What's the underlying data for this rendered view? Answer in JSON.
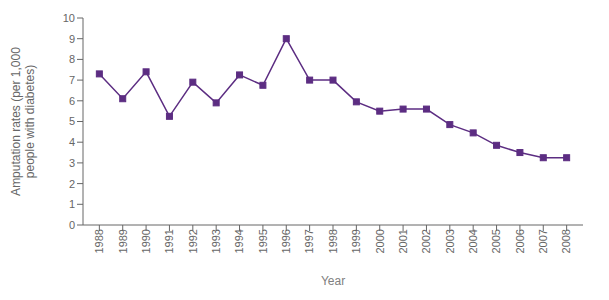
{
  "chart_data": {
    "type": "line",
    "xlabel": "Year",
    "ylabel": "Amputation rates (per 1,000\npeople with diabetes)",
    "x": [
      1988,
      1989,
      1990,
      1991,
      1992,
      1993,
      1994,
      1995,
      1996,
      1997,
      1998,
      1999,
      2000,
      2001,
      2002,
      2003,
      2004,
      2005,
      2006,
      2007,
      2008
    ],
    "values": [
      7.3,
      6.1,
      7.4,
      5.25,
      6.9,
      5.9,
      7.25,
      6.75,
      9.0,
      7.0,
      7.0,
      5.95,
      5.5,
      5.6,
      5.6,
      4.85,
      4.45,
      3.85,
      3.5,
      3.25,
      3.25
    ],
    "color": "#5c2d82",
    "marker": "square",
    "xlim": [
      1987.3,
      2008.7
    ],
    "xticks": [
      1988,
      1989,
      1990,
      1991,
      1992,
      1993,
      1994,
      1995,
      1996,
      1997,
      1998,
      1999,
      2000,
      2001,
      2002,
      2003,
      2004,
      2005,
      2006,
      2007,
      2008
    ],
    "ylim": [
      0,
      10
    ],
    "yticks": [
      0,
      1,
      2,
      3,
      4,
      5,
      6,
      7,
      8,
      9,
      10
    ],
    "grid": false
  }
}
